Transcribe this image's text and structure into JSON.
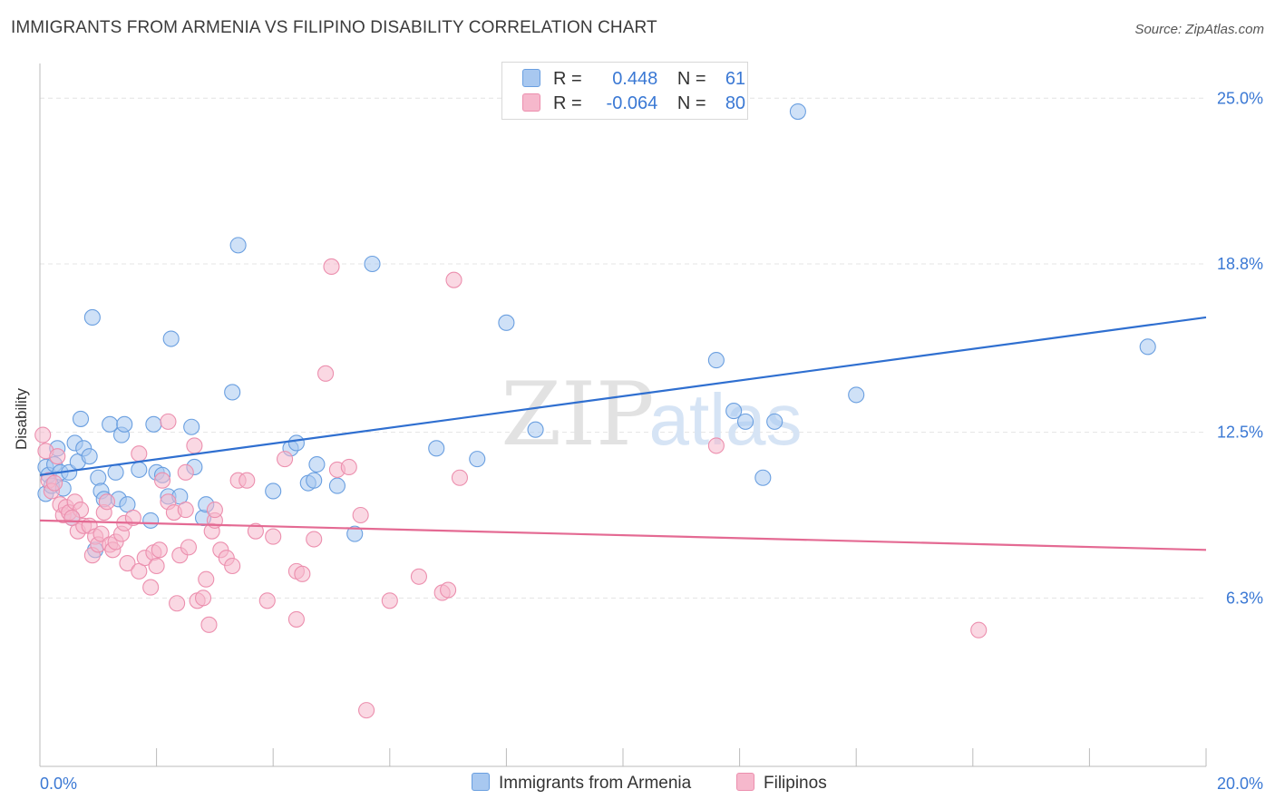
{
  "header": {
    "title": "IMMIGRANTS FROM ARMENIA VS FILIPINO DISABILITY CORRELATION CHART",
    "source": "Source: ZipAtlas.com"
  },
  "watermark": {
    "zip": "ZIP",
    "atlas": "atlas"
  },
  "legend": {
    "rows": [
      {
        "r_label": "R =",
        "r_value": "0.448",
        "n_label": "N =",
        "n_value": "61",
        "color": "#a8c8f0"
      },
      {
        "r_label": "R =",
        "r_value": "-0.064",
        "n_label": "N =",
        "n_value": "80",
        "color": "#f6b8cc"
      }
    ]
  },
  "bottom_legend": {
    "items": [
      {
        "label": "Immigrants from Armenia",
        "color": "#a8c8f0"
      },
      {
        "label": "Filipinos",
        "color": "#f6b8cc"
      }
    ]
  },
  "chart_data": {
    "type": "scatter",
    "title": "IMMIGRANTS FROM ARMENIA VS FILIPINO DISABILITY CORRELATION CHART",
    "xlabel": "",
    "ylabel": "Disability",
    "xlim": [
      0,
      20
    ],
    "ylim": [
      0,
      26.3
    ],
    "x_tick_labels": [
      "0.0%",
      "20.0%"
    ],
    "y_ticks": [
      6.3,
      12.5,
      18.8,
      25.0
    ],
    "y_tick_labels": [
      "6.3%",
      "12.5%",
      "18.8%",
      "25.0%"
    ],
    "grid": true,
    "legend_position": "top-center",
    "series": [
      {
        "name": "Immigrants from Armenia",
        "color": "#6a9fe0",
        "fill": "#a8c8f0",
        "trend_color": "#2f6fd0",
        "trend": [
          [
            0,
            10.9
          ],
          [
            20,
            16.8
          ]
        ],
        "points": [
          [
            0.1,
            11.2
          ],
          [
            0.1,
            10.2
          ],
          [
            0.15,
            10.9
          ],
          [
            0.2,
            10.5
          ],
          [
            0.25,
            11.3
          ],
          [
            0.3,
            11.9
          ],
          [
            0.35,
            11.0
          ],
          [
            0.4,
            10.4
          ],
          [
            0.5,
            11.0
          ],
          [
            0.55,
            9.3
          ],
          [
            0.6,
            12.1
          ],
          [
            0.65,
            11.4
          ],
          [
            0.7,
            13.0
          ],
          [
            0.75,
            11.9
          ],
          [
            0.85,
            11.6
          ],
          [
            0.9,
            16.8
          ],
          [
            0.95,
            8.1
          ],
          [
            1.0,
            10.8
          ],
          [
            1.05,
            10.3
          ],
          [
            1.1,
            10.0
          ],
          [
            1.2,
            12.8
          ],
          [
            1.3,
            11.0
          ],
          [
            1.35,
            10.0
          ],
          [
            1.4,
            12.4
          ],
          [
            1.45,
            12.8
          ],
          [
            1.5,
            9.8
          ],
          [
            1.7,
            11.1
          ],
          [
            1.9,
            9.2
          ],
          [
            1.95,
            12.8
          ],
          [
            2.0,
            11.0
          ],
          [
            2.1,
            10.9
          ],
          [
            2.2,
            10.1
          ],
          [
            2.25,
            16.0
          ],
          [
            2.4,
            10.1
          ],
          [
            2.6,
            12.7
          ],
          [
            2.65,
            11.2
          ],
          [
            2.8,
            9.3
          ],
          [
            2.85,
            9.8
          ],
          [
            3.3,
            14.0
          ],
          [
            3.4,
            19.5
          ],
          [
            4.0,
            10.3
          ],
          [
            4.3,
            11.9
          ],
          [
            4.4,
            12.1
          ],
          [
            4.6,
            10.6
          ],
          [
            4.7,
            10.7
          ],
          [
            4.75,
            11.3
          ],
          [
            5.1,
            10.5
          ],
          [
            5.4,
            8.7
          ],
          [
            5.7,
            18.8
          ],
          [
            6.8,
            11.9
          ],
          [
            7.5,
            11.5
          ],
          [
            8.0,
            16.6
          ],
          [
            8.5,
            12.6
          ],
          [
            11.6,
            15.2
          ],
          [
            11.9,
            13.3
          ],
          [
            12.1,
            12.9
          ],
          [
            12.4,
            10.8
          ],
          [
            12.6,
            12.9
          ],
          [
            13.0,
            24.5
          ],
          [
            14.0,
            13.9
          ],
          [
            19.0,
            15.7
          ]
        ]
      },
      {
        "name": "Filipinos",
        "color": "#ec8fae",
        "fill": "#f6b8cc",
        "trend_color": "#e46a93",
        "trend": [
          [
            0,
            9.2
          ],
          [
            20,
            8.1
          ]
        ],
        "points": [
          [
            0.05,
            12.4
          ],
          [
            0.1,
            11.8
          ],
          [
            0.15,
            10.7
          ],
          [
            0.2,
            10.3
          ],
          [
            0.25,
            10.6
          ],
          [
            0.35,
            9.8
          ],
          [
            0.4,
            9.4
          ],
          [
            0.45,
            9.7
          ],
          [
            0.5,
            9.5
          ],
          [
            0.6,
            9.9
          ],
          [
            0.65,
            8.8
          ],
          [
            0.7,
            9.6
          ],
          [
            0.75,
            9.0
          ],
          [
            0.85,
            9.0
          ],
          [
            0.9,
            7.9
          ],
          [
            0.95,
            8.6
          ],
          [
            1.0,
            8.3
          ],
          [
            1.05,
            8.7
          ],
          [
            1.1,
            9.5
          ],
          [
            1.15,
            9.9
          ],
          [
            1.2,
            8.3
          ],
          [
            1.25,
            8.1
          ],
          [
            1.3,
            8.4
          ],
          [
            1.4,
            8.7
          ],
          [
            1.45,
            9.1
          ],
          [
            1.5,
            7.6
          ],
          [
            1.6,
            9.3
          ],
          [
            1.7,
            7.3
          ],
          [
            1.8,
            7.8
          ],
          [
            1.9,
            6.7
          ],
          [
            1.95,
            8.0
          ],
          [
            2.0,
            7.5
          ],
          [
            2.05,
            8.1
          ],
          [
            2.1,
            10.7
          ],
          [
            2.2,
            9.9
          ],
          [
            2.3,
            9.5
          ],
          [
            2.35,
            6.1
          ],
          [
            2.4,
            7.9
          ],
          [
            2.5,
            9.6
          ],
          [
            2.55,
            8.2
          ],
          [
            2.65,
            12.0
          ],
          [
            2.7,
            6.2
          ],
          [
            2.8,
            6.3
          ],
          [
            2.85,
            7.0
          ],
          [
            2.9,
            5.3
          ],
          [
            2.95,
            8.8
          ],
          [
            3.0,
            9.2
          ],
          [
            3.1,
            8.1
          ],
          [
            3.2,
            7.8
          ],
          [
            3.3,
            7.5
          ],
          [
            3.4,
            10.7
          ],
          [
            3.55,
            10.7
          ],
          [
            3.7,
            8.8
          ],
          [
            3.9,
            6.2
          ],
          [
            4.0,
            8.6
          ],
          [
            4.2,
            11.5
          ],
          [
            4.4,
            7.3
          ],
          [
            4.4,
            5.5
          ],
          [
            4.5,
            7.2
          ],
          [
            4.7,
            8.5
          ],
          [
            4.9,
            14.7
          ],
          [
            5.0,
            18.7
          ],
          [
            5.1,
            11.1
          ],
          [
            5.3,
            11.2
          ],
          [
            5.5,
            9.4
          ],
          [
            5.6,
            2.1
          ],
          [
            6.0,
            6.2
          ],
          [
            6.5,
            7.1
          ],
          [
            6.9,
            6.5
          ],
          [
            7.0,
            6.6
          ],
          [
            7.1,
            18.2
          ],
          [
            7.2,
            10.8
          ],
          [
            11.6,
            12.0
          ],
          [
            16.1,
            5.1
          ],
          [
            0.3,
            11.6
          ],
          [
            1.7,
            11.7
          ],
          [
            2.2,
            12.9
          ],
          [
            2.5,
            11.0
          ],
          [
            0.55,
            9.3
          ],
          [
            3.0,
            9.6
          ]
        ]
      }
    ]
  }
}
